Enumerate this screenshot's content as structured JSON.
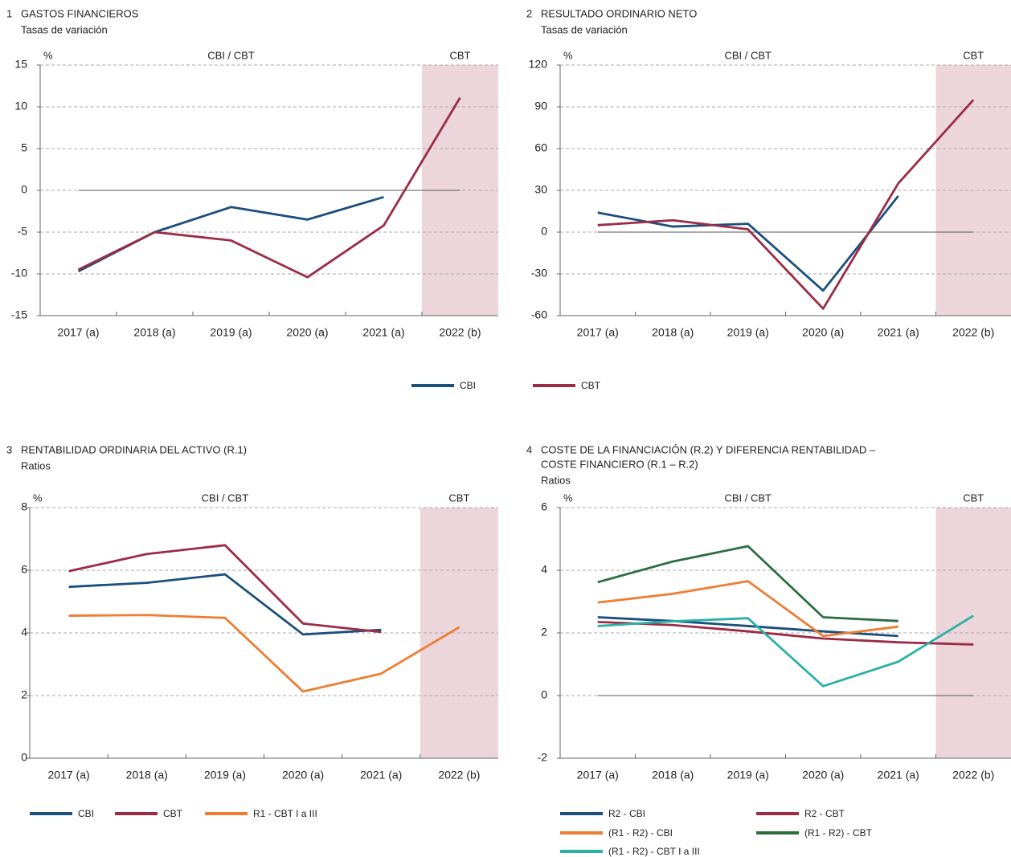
{
  "chart_data": [
    {
      "type": "line",
      "number": "1",
      "title": [
        "GASTOS FINANCIEROS"
      ],
      "subtitle": "Tasas de variación",
      "unit": "%",
      "period_labels": [
        "CBI / CBT",
        "CBT"
      ],
      "categories": [
        "2017 (a)",
        "2018 (a)",
        "2019 (a)",
        "2020 (a)",
        "2021 (a)",
        "2022 (b)"
      ],
      "ylim": [
        -15,
        15
      ],
      "yticks": [
        -15,
        -10,
        -5,
        0,
        5,
        10,
        15
      ],
      "hline": 0,
      "grid": true,
      "series": [
        {
          "name": "CBI",
          "color": "#1b4f7e",
          "values": [
            -9.7,
            -5,
            -2,
            -3.5,
            -0.8,
            null
          ]
        },
        {
          "name": "CBT",
          "color": "#9c2b45",
          "values": [
            -9.5,
            -5,
            -6,
            -10.4,
            -4.2,
            11.1
          ]
        }
      ]
    },
    {
      "type": "line",
      "number": "2",
      "title": [
        "RESULTADO ORDINARIO NETO"
      ],
      "subtitle": "Tasas de variación",
      "unit": "%",
      "period_labels": [
        "CBI / CBT",
        "CBT"
      ],
      "categories": [
        "2017 (a)",
        "2018 (a)",
        "2019 (a)",
        "2020 (a)",
        "2021 (a)",
        "2022 (b)"
      ],
      "ylim": [
        -60,
        120
      ],
      "yticks": [
        -60,
        -30,
        0,
        30,
        60,
        90,
        120
      ],
      "hline": 0,
      "grid": true,
      "series": [
        {
          "color": "#1b4f7e",
          "values": [
            14,
            4,
            6,
            -42,
            26,
            null
          ]
        },
        {
          "color": "#9c2b45",
          "values": [
            5,
            8.5,
            2,
            -55,
            35,
            95
          ]
        }
      ]
    },
    {
      "type": "line",
      "number": "3",
      "title": [
        "RENTABILIDAD ORDINARIA DEL ACTIVO (R.1)"
      ],
      "subtitle": "Ratios",
      "unit": "%",
      "period_labels": [
        "CBI / CBT",
        "CBT"
      ],
      "categories": [
        "2017 (a)",
        "2018 (a)",
        "2019 (a)",
        "2020 (a)",
        "2021 (a)",
        "2022 (b)"
      ],
      "ylim": [
        0,
        8
      ],
      "yticks": [
        0,
        2,
        4,
        6,
        8
      ],
      "grid": true,
      "series": [
        {
          "name": "CBI",
          "color": "#1b4f7e",
          "values": [
            5.47,
            5.6,
            5.87,
            3.95,
            4.1,
            null
          ]
        },
        {
          "name": "CBT",
          "color": "#9c2b45",
          "values": [
            5.97,
            6.52,
            6.8,
            4.3,
            4.03,
            null
          ]
        },
        {
          "name": "R1 - CBT I a III",
          "color": "#ee7d31",
          "values": [
            4.55,
            4.57,
            4.48,
            2.13,
            2.7,
            4.18
          ]
        }
      ]
    },
    {
      "type": "line",
      "number": "4",
      "title": [
        "COSTE DE LA FINANCIACIÓN (R.2) Y DIFERENCIA RENTABILIDAD –",
        "COSTE FINANCIERO (R.1 – R.2)"
      ],
      "subtitle": "Ratios",
      "unit": "%",
      "period_labels": [
        "CBI / CBT",
        "CBT"
      ],
      "categories": [
        "2017 (a)",
        "2018 (a)",
        "2019 (a)",
        "2020 (a)",
        "2021 (a)",
        "2022 (b)"
      ],
      "ylim": [
        -2,
        6
      ],
      "yticks": [
        -2,
        0,
        2,
        4,
        6
      ],
      "hline": 0,
      "grid": true,
      "series": [
        {
          "name": "R2 - CBI",
          "color": "#1b4f7e",
          "values": [
            2.5,
            2.38,
            2.22,
            2.05,
            1.9,
            null
          ]
        },
        {
          "name": "R2 - CBT",
          "color": "#9c2b45",
          "values": [
            2.35,
            2.25,
            2.05,
            1.82,
            1.7,
            1.63
          ]
        },
        {
          "name": "(R1 - R2) - CBI",
          "color": "#ee7d31",
          "values": [
            2.97,
            3.25,
            3.65,
            1.9,
            2.2,
            null
          ]
        },
        {
          "name": "(R1 - R2) - CBT",
          "color": "#2a6e3d",
          "values": [
            3.62,
            4.28,
            4.77,
            2.5,
            2.38,
            null
          ]
        },
        {
          "name": "(R1 - R2) - CBT I a III",
          "color": "#2bb0a5",
          "values": [
            2.22,
            2.37,
            2.47,
            0.3,
            1.08,
            2.55
          ]
        }
      ]
    }
  ]
}
